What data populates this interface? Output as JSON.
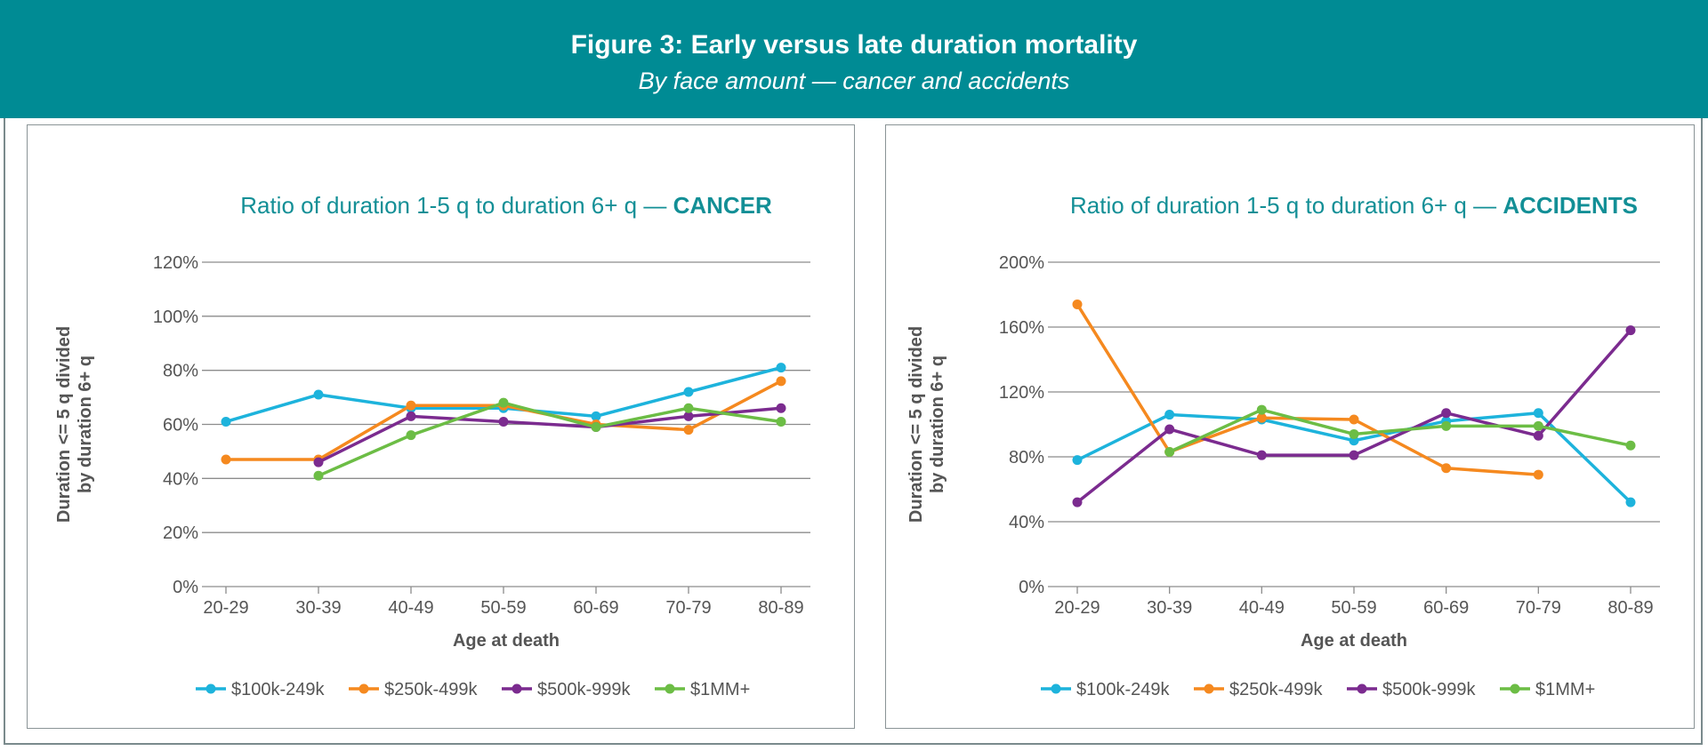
{
  "header": {
    "title": "Figure 3: Early versus late duration mortality",
    "subtitle": "By face amount — cancer and accidents",
    "background": "#008b94"
  },
  "chart_data": [
    {
      "type": "line",
      "title": "Ratio of duration 1-5 q to duration 6+ q — ",
      "title_bold": "CANCER",
      "xlabel": "Age at death",
      "ylabel_line1": "Duration <= 5 q divided",
      "ylabel_line2": "by duration 6+ q",
      "categories": [
        "20-29",
        "30-39",
        "40-49",
        "50-59",
        "60-69",
        "70-79",
        "80-89"
      ],
      "ylim": [
        0,
        120
      ],
      "yticks": [
        0,
        20,
        40,
        60,
        80,
        100,
        120
      ],
      "ytick_labels": [
        "0%",
        "20%",
        "40%",
        "60%",
        "80%",
        "100%",
        "120%"
      ],
      "grid": true,
      "legend": "bottom",
      "series": [
        {
          "name": "$100k-249k",
          "color": "#1db3dc",
          "values": [
            61,
            71,
            66,
            66,
            63,
            72,
            81
          ]
        },
        {
          "name": "$250k-499k",
          "color": "#f5891f",
          "values": [
            47,
            47,
            67,
            67,
            60,
            58,
            76
          ]
        },
        {
          "name": "$500k-999k",
          "color": "#7b2b8f",
          "values": [
            null,
            46,
            63,
            61,
            59,
            63,
            66
          ]
        },
        {
          "name": "$1MM+",
          "color": "#6cbd45",
          "values": [
            null,
            41,
            56,
            68,
            59,
            66,
            61
          ]
        }
      ]
    },
    {
      "type": "line",
      "title": "Ratio of duration 1-5 q to duration 6+ q — ",
      "title_bold": "ACCIDENTS",
      "xlabel": "Age at death",
      "ylabel_line1": "Duration <= 5 q divided",
      "ylabel_line2": "by duration 6+ q",
      "categories": [
        "20-29",
        "30-39",
        "40-49",
        "50-59",
        "60-69",
        "70-79",
        "80-89"
      ],
      "ylim": [
        0,
        200
      ],
      "yticks": [
        0,
        40,
        80,
        120,
        160,
        200
      ],
      "ytick_labels": [
        "0%",
        "40%",
        "80%",
        "120%",
        "160%",
        "200%"
      ],
      "grid": true,
      "legend": "bottom",
      "series": [
        {
          "name": "$100k-249k",
          "color": "#1db3dc",
          "values": [
            78,
            106,
            103,
            90,
            102,
            107,
            52
          ]
        },
        {
          "name": "$250k-499k",
          "color": "#f5891f",
          "values": [
            174,
            83,
            104,
            103,
            73,
            69,
            null
          ]
        },
        {
          "name": "$500k-999k",
          "color": "#7b2b8f",
          "values": [
            52,
            97,
            81,
            81,
            107,
            93,
            158
          ]
        },
        {
          "name": "$1MM+",
          "color": "#6cbd45",
          "values": [
            null,
            83,
            109,
            94,
            99,
            99,
            87
          ]
        }
      ]
    }
  ]
}
